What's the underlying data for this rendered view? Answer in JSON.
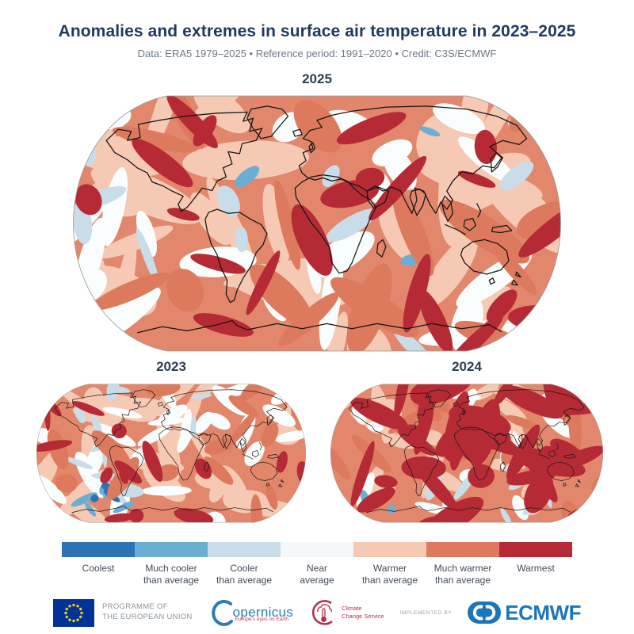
{
  "header": {
    "title": "Anomalies and extremes in surface air temperature in 2023–2025",
    "subtitle": "Data: ERA5 1979–2025 • Reference period: 1991–2020 • Credit: C3S/ECMWF"
  },
  "maps": {
    "large": {
      "year": "2025"
    },
    "small_left": {
      "year": "2023"
    },
    "small_right": {
      "year": "2024"
    }
  },
  "legend": {
    "items": [
      {
        "label": "Coolest",
        "lines": [
          "Coolest",
          ""
        ],
        "color": "#2d72b2"
      },
      {
        "label": "Much cooler than average",
        "lines": [
          "Much cooler",
          "than average"
        ],
        "color": "#6aaed3"
      },
      {
        "label": "Cooler than average",
        "lines": [
          "Cooler",
          "than average"
        ],
        "color": "#c8dcea"
      },
      {
        "label": "Near average",
        "lines": [
          "Near",
          "average"
        ],
        "color": "#f4f8f8"
      },
      {
        "label": "Warmer than average",
        "lines": [
          "Warmer",
          "than average"
        ],
        "color": "#f6c9b4"
      },
      {
        "label": "Much warmer than average",
        "lines": [
          "Much warmer",
          "than average"
        ],
        "color": "#dd7a5d"
      },
      {
        "label": "Warmest",
        "lines": [
          "Warmest",
          ""
        ],
        "color": "#b62a35"
      }
    ]
  },
  "footer": {
    "eu_programme": [
      "PROGRAMME OF",
      "THE EUROPEAN UNION"
    ],
    "copernicus_wordmark": "opernicus",
    "copernicus_tagline": "Europe's eyes on Earth",
    "c3s": [
      "Climate",
      "Change Service"
    ],
    "implemented_by": "IMPLEMENTED BY",
    "ecmwf": "ECMWF"
  },
  "colors": {
    "title": "#1f3a5e",
    "map_base": "#e2876b",
    "eu_blue": "#003399",
    "eu_star": "#ffcc00",
    "copernicus_blue": "#2b7cb3",
    "c3s_red": "#b5304a",
    "ecmwf_blue": "#1b75bb"
  },
  "chart_data": {
    "type": "heatmap",
    "title": "Anomalies and extremes in surface air temperature in 2023–2025",
    "subtitle": "Data: ERA5 1979–2025 • Reference period: 1991–2020 • Credit: C3S/ECMWF",
    "projection": "Robinson world maps",
    "panels": [
      {
        "year": "2025",
        "size": "large",
        "description": "Globe dominated by warmer and much-warmer-than-average anomalies; warmest bands over Arctic Canada, North Atlantic, Siberia, Sahel, southern oceans and Antarctic rim; scattered cooler-than-average patches over the eastern tropical Pacific, southern Africa, India and Southern Ocean."
      },
      {
        "year": "2023",
        "size": "small",
        "description": "Mostly warmer/much warmer than average with warmest patches over the North Atlantic, Central Asia, South America interior and South Pacific; pronounced much-cooler/coolest region in the Southern Ocean southwest of South America."
      },
      {
        "year": "2024",
        "size": "small",
        "description": "Most extreme panel: warmest category covers large parts of the tropics, continents and western Pacific; only limited cooler-than-average patches in the Southern Ocean, southeast Pacific and around Greenland."
      }
    ],
    "legend_categories": [
      {
        "label": "Coolest",
        "color": "#2d72b2"
      },
      {
        "label": "Much cooler than average",
        "color": "#6aaed3"
      },
      {
        "label": "Cooler than average",
        "color": "#c8dcea"
      },
      {
        "label": "Near average",
        "color": "#f4f8f8"
      },
      {
        "label": "Warmer than average",
        "color": "#f6c9b4"
      },
      {
        "label": "Much warmer than average",
        "color": "#dd7a5d"
      },
      {
        "label": "Warmest",
        "color": "#b62a35"
      }
    ]
  }
}
